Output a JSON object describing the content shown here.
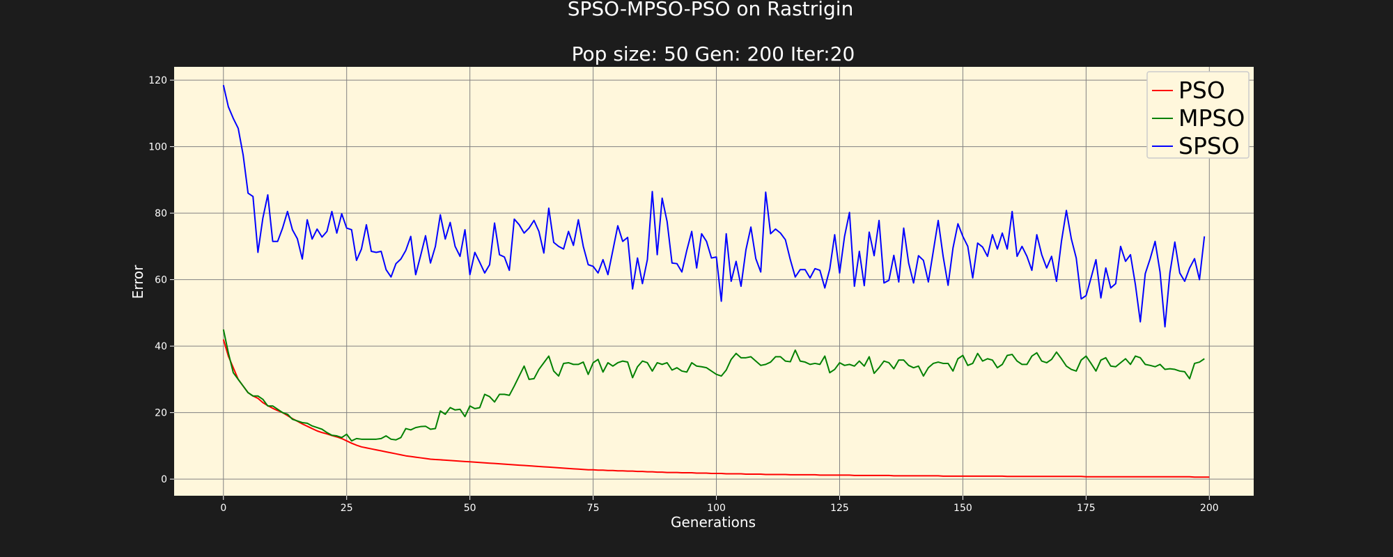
{
  "figure": {
    "title_line1": "SPSO-MPSO-PSO on Rastrigin",
    "title_line2": "Pop size: 50  Gen: 200  Iter:20"
  },
  "colors": {
    "figure_bg": "#1c1c1c",
    "plot_bg": "#fff7dc",
    "grid": "#808080",
    "text": "#ffffff",
    "legend_bg": "#fff7dc",
    "legend_text": "#000000"
  },
  "chart_data": {
    "type": "line",
    "xlabel": "Generations",
    "ylabel": "Error",
    "xlim": [
      -10,
      209
    ],
    "ylim": [
      -5,
      124
    ],
    "xticks": [
      0,
      25,
      50,
      75,
      100,
      125,
      150,
      175,
      200
    ],
    "yticks": [
      0,
      20,
      40,
      60,
      80,
      100,
      120
    ],
    "grid": true,
    "legend_position": "top-right",
    "series": [
      {
        "name": "PSO",
        "color": "#ff0000",
        "values": [
          42,
          37,
          33.5,
          30,
          28,
          26,
          25,
          24.3,
          23,
          22.1,
          21.3,
          20.6,
          20,
          19.1,
          18.2,
          17.4,
          16.6,
          15.9,
          15.2,
          14.5,
          14,
          13.6,
          13.1,
          12.7,
          12.2,
          11.5,
          10.8,
          10.2,
          9.7,
          9.4,
          9.1,
          8.8,
          8.5,
          8.2,
          7.9,
          7.6,
          7.3,
          7,
          6.8,
          6.6,
          6.4,
          6.2,
          6,
          5.9,
          5.8,
          5.7,
          5.6,
          5.5,
          5.4,
          5.3,
          5.2,
          5.1,
          5,
          4.9,
          4.8,
          4.7,
          4.6,
          4.5,
          4.4,
          4.3,
          4.2,
          4.1,
          4,
          3.9,
          3.8,
          3.7,
          3.6,
          3.5,
          3.4,
          3.3,
          3.2,
          3.1,
          3,
          2.9,
          2.8,
          2.8,
          2.7,
          2.7,
          2.6,
          2.6,
          2.5,
          2.5,
          2.4,
          2.4,
          2.3,
          2.3,
          2.2,
          2.2,
          2.1,
          2.1,
          2,
          2,
          2,
          1.9,
          1.9,
          1.9,
          1.8,
          1.8,
          1.8,
          1.7,
          1.7,
          1.7,
          1.6,
          1.6,
          1.6,
          1.6,
          1.5,
          1.5,
          1.5,
          1.5,
          1.4,
          1.4,
          1.4,
          1.4,
          1.4,
          1.3,
          1.3,
          1.3,
          1.3,
          1.3,
          1.3,
          1.2,
          1.2,
          1.2,
          1.2,
          1.2,
          1.2,
          1.2,
          1.1,
          1.1,
          1.1,
          1.1,
          1.1,
          1.1,
          1.1,
          1.1,
          1,
          1,
          1,
          1,
          1,
          1,
          1,
          1,
          1,
          1,
          0.9,
          0.9,
          0.9,
          0.9,
          0.9,
          0.9,
          0.9,
          0.9,
          0.9,
          0.9,
          0.9,
          0.9,
          0.9,
          0.8,
          0.8,
          0.8,
          0.8,
          0.8,
          0.8,
          0.8,
          0.8,
          0.8,
          0.8,
          0.8,
          0.8,
          0.8,
          0.8,
          0.8,
          0.8,
          0.7,
          0.7,
          0.7,
          0.7,
          0.7,
          0.7,
          0.7,
          0.7,
          0.7,
          0.7,
          0.7,
          0.7,
          0.7,
          0.7,
          0.7,
          0.7,
          0.7,
          0.7,
          0.7,
          0.7,
          0.7,
          0.7,
          0.6,
          0.6,
          0.6,
          0.6
        ]
      },
      {
        "name": "MPSO",
        "color": "#008000",
        "values": [
          45,
          38,
          32,
          30,
          28,
          26,
          25,
          25,
          24,
          22,
          22,
          21,
          20,
          19.5,
          18,
          17.5,
          17,
          16.8,
          16,
          15.5,
          15,
          14,
          13.2,
          13,
          12.5,
          13.5,
          11.5,
          12.2,
          12,
          12,
          12,
          12,
          12.2,
          13,
          12,
          11.8,
          12.5,
          15.2,
          14.8,
          15.5,
          15.8,
          15.9,
          15,
          15.2,
          20.5,
          19.5,
          21.5,
          20.8,
          21,
          18.8,
          22,
          21.2,
          21.5,
          25.5,
          24.8,
          23.2,
          25.5,
          25.5,
          25.2,
          28,
          31,
          34,
          30,
          30.2,
          33,
          35,
          37,
          32.5,
          31,
          34.8,
          35,
          34.5,
          34.5,
          35.2,
          31.5,
          35,
          36,
          32.2,
          35,
          34,
          35,
          35.5,
          35.2,
          30.5,
          33.8,
          35.5,
          35,
          32.5,
          35,
          34.5,
          35,
          32.8,
          33.5,
          32.5,
          32.2,
          35,
          34,
          33.8,
          33.5,
          32.5,
          31.5,
          31,
          32.8,
          36,
          37.8,
          36.5,
          36.5,
          36.8,
          35.5,
          34.2,
          34.5,
          35.2,
          36.8,
          36.8,
          35.5,
          35.3,
          38.8,
          35.5,
          35.2,
          34.5,
          34.8,
          34.5,
          37,
          32,
          33,
          35,
          34.2,
          34.5,
          34,
          35.5,
          34,
          36.8,
          31.8,
          33.5,
          35.5,
          35,
          33.2,
          35.8,
          35.8,
          34.2,
          33.5,
          34,
          31,
          33.5,
          34.8,
          35.2,
          34.8,
          34.8,
          32.5,
          36.2,
          37.2,
          34.2,
          34.8,
          37.8,
          35.5,
          36.2,
          35.8,
          33.5,
          34.5,
          37.2,
          37.5,
          35.5,
          34.5,
          34.5,
          37,
          38,
          35.5,
          35,
          36,
          38.2,
          36.2,
          34,
          33,
          32.5,
          35.8,
          37,
          34.8,
          32.5,
          35.8,
          36.5,
          34,
          33.8,
          35,
          36.2,
          34.5,
          37,
          36.5,
          34.5,
          34.2,
          33.8,
          34.5,
          33,
          33.2,
          33,
          32.5,
          32.3,
          30.2,
          34.8,
          35.2,
          36.2
        ]
      },
      {
        "name": "SPSO",
        "color": "#0000ff",
        "values": [
          118.5,
          112,
          108.5,
          105.5,
          97.5,
          86,
          85,
          68.2,
          78.5,
          85.5,
          71.5,
          71.5,
          75.5,
          80.5,
          75,
          72.3,
          66.2,
          78,
          72.2,
          75.2,
          72.8,
          74.5,
          80.5,
          74,
          79.8,
          75.5,
          75,
          65.8,
          69.2,
          76.5,
          68.5,
          68.2,
          68.5,
          63,
          60.8,
          64.8,
          66.2,
          68.8,
          73,
          61.5,
          67.2,
          73.2,
          65,
          70,
          79.5,
          72.2,
          77.2,
          70,
          67,
          75,
          61.5,
          68.2,
          65.2,
          62,
          64.5,
          77,
          67.5,
          66.8,
          62.8,
          78.2,
          76.5,
          74,
          75.5,
          77.8,
          74.5,
          68,
          81.5,
          71.2,
          70,
          69.2,
          74.5,
          70.3,
          78,
          70,
          64.5,
          64,
          62,
          66,
          61.5,
          68.8,
          76.2,
          71.5,
          72.7,
          57.2,
          66.5,
          58.8,
          66,
          86.5,
          67.5,
          84.5,
          77.5,
          65,
          64.8,
          62.3,
          68.8,
          74.5,
          63.5,
          73.8,
          71.5,
          66.5,
          66.8,
          53.5,
          73.8,
          59.5,
          65.5,
          58,
          69,
          75.8,
          66.3,
          62.3,
          86.3,
          73.8,
          75.2,
          74,
          72,
          66,
          60.8,
          63,
          63,
          60.5,
          63.3,
          62.8,
          57.5,
          63.2,
          73.5,
          62,
          73,
          80.2,
          58,
          68.5,
          58.2,
          74.3,
          67.2,
          77.8,
          59,
          59.8,
          67.3,
          59.3,
          75.5,
          65,
          59,
          67.2,
          65.8,
          59.3,
          68.5,
          77.8,
          67,
          58.3,
          69.5,
          76.8,
          73,
          70,
          60.5,
          71,
          69.8,
          67,
          73.5,
          69.2,
          74,
          69.2,
          80.5,
          67,
          70,
          67,
          62.8,
          73.5,
          67.5,
          63.5,
          67,
          59.5,
          71.5,
          80.8,
          72.3,
          66.5,
          54.2,
          55.2,
          60.5,
          66,
          54.5,
          63.5,
          57.5,
          58.8,
          70,
          65.5,
          67.5,
          58.5,
          47.3,
          61.8,
          66.3,
          71.5,
          62.3,
          45.8,
          62,
          71.3,
          62,
          59.5,
          63.5,
          66.3,
          60,
          73
        ]
      }
    ]
  }
}
